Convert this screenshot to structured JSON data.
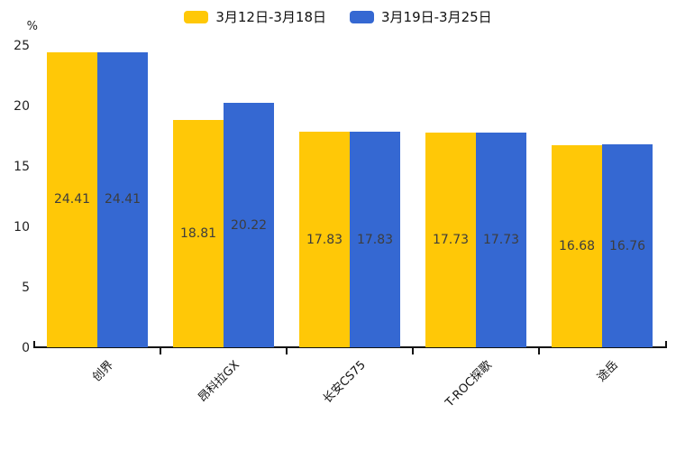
{
  "chart_data": {
    "type": "bar",
    "title": "",
    "categories": [
      "创界",
      "昂科拉GX",
      "长安CS75",
      "T-ROC探歌",
      "途岳"
    ],
    "series": [
      {
        "name": "3月12日-3月18日",
        "color": "#FFC807",
        "values": [
          24.41,
          18.81,
          17.83,
          17.73,
          16.68
        ]
      },
      {
        "name": "3月19日-3月25日",
        "color": "#3568D2",
        "values": [
          24.41,
          20.22,
          17.83,
          17.73,
          16.76
        ]
      }
    ],
    "xlabel": "",
    "ylabel": "%",
    "ylim": [
      0,
      25
    ],
    "ytick_step": 5,
    "yticks": [
      0,
      5,
      10,
      15,
      20,
      25
    ],
    "grid": false,
    "legend_position": "top",
    "value_labels_shown": true,
    "value_label_color": "#3d3d3d",
    "axis_color": "#111111"
  }
}
